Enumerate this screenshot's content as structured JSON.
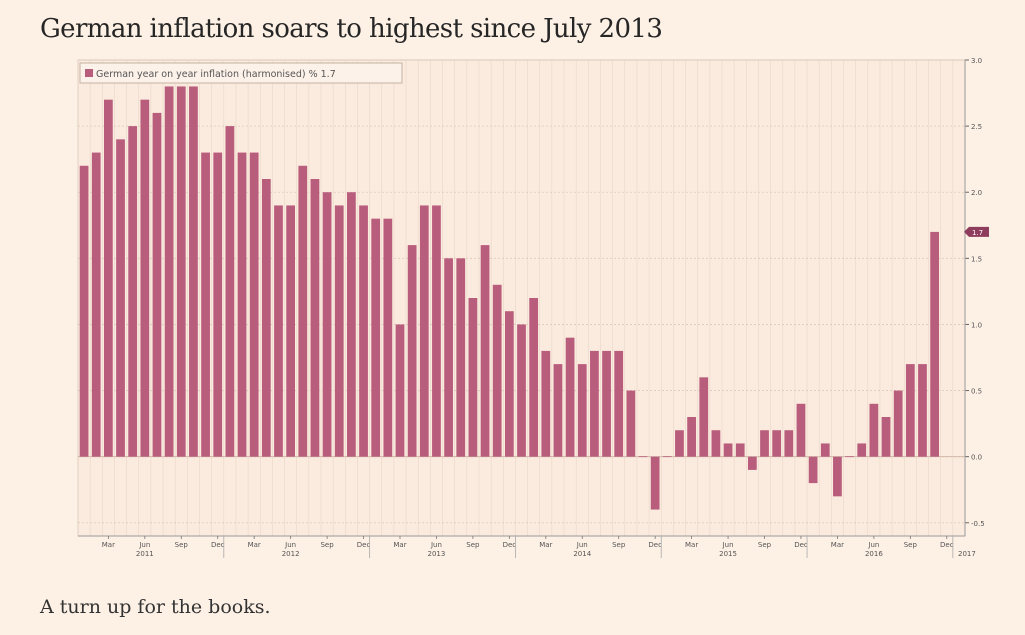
{
  "headline": "German inflation soars to highest since July 2013",
  "caption": "A turn up for the books.",
  "colors": {
    "background": "#fdf0e5",
    "plot_background": "#fbebde",
    "bar": "#b95d7d",
    "grid": "#e8d6c8"
  },
  "chart_data": {
    "type": "bar",
    "legend": {
      "label": "German year on year inflation (harmonised) % 1.7",
      "placement": "top-left"
    },
    "last_value_marker": "1.7",
    "ylim": [
      -0.6,
      3.0
    ],
    "yticks": [
      -0.5,
      0.0,
      0.5,
      1.0,
      1.5,
      2.0,
      2.5,
      3.0
    ],
    "ytick_labels": [
      "-0.5",
      "0.0",
      "0.5",
      "1.0",
      "1.5",
      "2.0",
      "2.5",
      "3.0"
    ],
    "y_axis_side": "right",
    "grid": true,
    "x_start": "2011-01",
    "x_end": "2017-01",
    "month_tick_labels": [
      "Mar",
      "Jun",
      "Sep",
      "Dec",
      "Mar",
      "Jun",
      "Sep",
      "Dec",
      "Mar",
      "Jun",
      "Sep",
      "Dec",
      "Mar",
      "Jun",
      "Sep",
      "Dec",
      "Mar",
      "Jun",
      "Sep",
      "Dec",
      "Mar",
      "Jun",
      "Sep",
      "Dec"
    ],
    "year_labels": [
      "2011",
      "2012",
      "2013",
      "2014",
      "2015",
      "2016",
      "2017"
    ],
    "values": [
      2.2,
      2.3,
      2.7,
      2.4,
      2.5,
      2.7,
      2.6,
      2.8,
      2.8,
      2.8,
      2.3,
      2.3,
      2.5,
      2.3,
      2.3,
      2.1,
      1.9,
      1.9,
      2.2,
      2.1,
      2.0,
      1.9,
      2.0,
      1.9,
      1.8,
      1.8,
      1.0,
      1.6,
      1.9,
      1.9,
      1.5,
      1.5,
      1.2,
      1.6,
      1.3,
      1.1,
      1.0,
      1.2,
      0.8,
      0.7,
      0.9,
      0.7,
      0.8,
      0.8,
      0.8,
      0.5,
      0.0,
      -0.4,
      0.0,
      0.2,
      0.3,
      0.6,
      0.2,
      0.1,
      0.1,
      -0.1,
      0.2,
      0.2,
      0.2,
      0.4,
      -0.2,
      0.1,
      -0.3,
      0.0,
      0.1,
      0.4,
      0.3,
      0.5,
      0.7,
      0.7,
      1.7
    ]
  }
}
